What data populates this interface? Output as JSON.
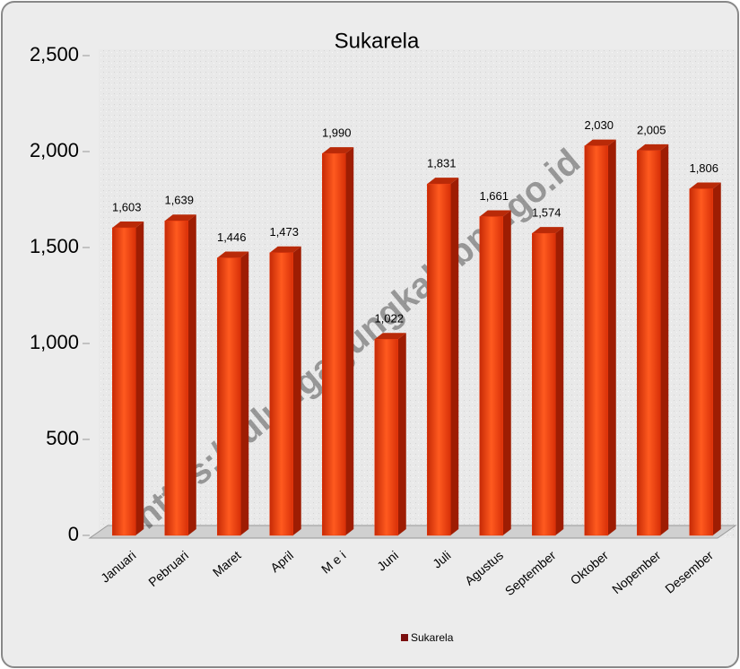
{
  "chart_data": {
    "type": "bar",
    "title": "Sukarela",
    "categories": [
      "Januari",
      "Pebruari",
      "Maret",
      "April",
      "M e i",
      "Juni",
      "Juli",
      "Agustus",
      "September",
      "Oktober",
      "Nopember",
      "Desember"
    ],
    "series": [
      {
        "name": "Sukarela",
        "color": "#e8380d",
        "values": [
          1603,
          1639,
          1446,
          1473,
          1990,
          1022,
          1831,
          1661,
          1574,
          2030,
          2005,
          1806
        ],
        "value_labels": [
          "1,603",
          "1,639",
          "1,446",
          "1,473",
          "1,990",
          "1,022",
          "1,831",
          "1,661",
          "1,574",
          "2,030",
          "2,005",
          "1,806"
        ]
      }
    ],
    "ylim": [
      0,
      2500
    ],
    "yticks": [
      0,
      500,
      {
        "value": 1000,
        "label": "1,000"
      },
      {
        "value": 1500,
        "label": "1,500"
      },
      {
        "value": 2000,
        "label": "2,000"
      },
      {
        "value": 2500,
        "label": "2,500"
      }
    ],
    "watermark": "https://tulungagungkab.bps.go.id"
  }
}
